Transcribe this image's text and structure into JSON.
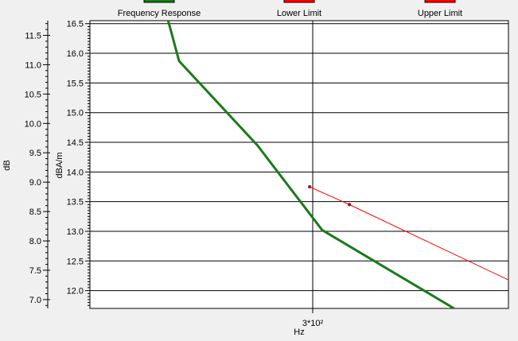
{
  "chart_data": {
    "type": "line",
    "legend": [
      {
        "label": "Frequency Response",
        "color": "#1a7a1a"
      },
      {
        "label": "Lower Limit",
        "color": "#ff0000"
      },
      {
        "label": "Upper Limit",
        "color": "#ff0000"
      }
    ],
    "xlabel": "Hz",
    "x_tick_label": "3*10²",
    "ylabel_outer": "dB",
    "ylabel_inner": "dBA/m",
    "outer_axis": {
      "ylim": [
        6.85,
        11.75
      ],
      "major_ticks": [
        7.0,
        7.5,
        8.0,
        8.5,
        9.0,
        9.5,
        10.0,
        10.5,
        11.0,
        11.5
      ],
      "tick_labels": [
        "7.0",
        "7.5",
        "8.0",
        "8.5",
        "9.0",
        "9.5",
        "10.0",
        "10.5",
        "11.0",
        "11.5"
      ]
    },
    "inner_axis": {
      "ylim": [
        11.7,
        16.55
      ],
      "major_ticks": [
        12.0,
        12.5,
        13.0,
        13.5,
        14.0,
        14.5,
        15.0,
        15.5,
        16.0,
        16.5
      ],
      "tick_labels": [
        "12.0",
        "12.5",
        "13.0",
        "13.5",
        "14.0",
        "14.5",
        "15.0",
        "15.5",
        "16.0",
        "16.5"
      ]
    },
    "xlim_frac": [
      0,
      1
    ],
    "series": [
      {
        "name": "Frequency Response",
        "color": "#1a7a1a",
        "x_frac": [
          0.187,
          0.213,
          0.4,
          0.555,
          0.87
        ],
        "y": [
          16.55,
          15.87,
          14.45,
          13.02,
          11.7
        ]
      },
      {
        "name": "Lower Limit",
        "color": "#ff0000",
        "x_frac": [
          0.525,
          0.62,
          1.0
        ],
        "y": [
          13.75,
          13.45,
          12.18
        ],
        "markers_x_frac": [
          0.525,
          0.62
        ],
        "markers_y": [
          13.75,
          13.45
        ]
      }
    ]
  }
}
